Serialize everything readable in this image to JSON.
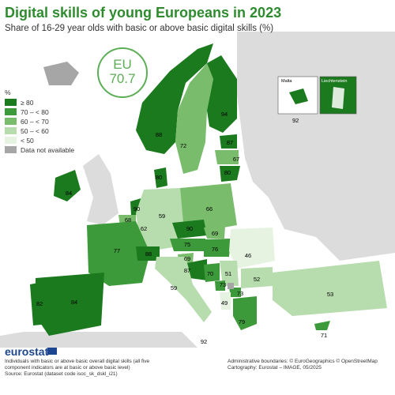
{
  "title": "Digital skills of young Europeans in 2023",
  "subtitle": "Share of 16-29 year olds with basic or above basic digital skills (%)",
  "eu_badge": {
    "label": "EU",
    "value": "70.7"
  },
  "legend": {
    "unit": "%",
    "items": [
      {
        "label": "≥ 80",
        "color": "#1b7a1e"
      },
      {
        "label": "70 – < 80",
        "color": "#3d9a3a"
      },
      {
        "label": "60 – < 70",
        "color": "#79bd6c"
      },
      {
        "label": "50 – < 60",
        "color": "#b7dcae"
      },
      {
        "label": "< 50",
        "color": "#e6f3e1"
      },
      {
        "label": "Data not available",
        "color": "#a6a6a6"
      }
    ]
  },
  "countries": [
    {
      "name": "Finland",
      "value": "94"
    },
    {
      "name": "Norway",
      "value": "88"
    },
    {
      "name": "Sweden",
      "value": "72"
    },
    {
      "name": "Estonia",
      "value": "87"
    },
    {
      "name": "Latvia",
      "value": "67"
    },
    {
      "name": "Lithuania",
      "value": "80"
    },
    {
      "name": "Denmark",
      "value": "80"
    },
    {
      "name": "Ireland",
      "value": "84"
    },
    {
      "name": "Netherlands",
      "value": "90"
    },
    {
      "name": "Belgium",
      "value": "68"
    },
    {
      "name": "Luxembourg",
      "value": "62"
    },
    {
      "name": "Germany",
      "value": "59"
    },
    {
      "name": "Poland",
      "value": "66"
    },
    {
      "name": "Czechia",
      "value": "90"
    },
    {
      "name": "Slovakia",
      "value": "69"
    },
    {
      "name": "Austria",
      "value": "75"
    },
    {
      "name": "Hungary",
      "value": "76"
    },
    {
      "name": "Romania",
      "value": "46"
    },
    {
      "name": "France",
      "value": "77"
    },
    {
      "name": "Switzerland",
      "value": "88"
    },
    {
      "name": "Slovenia",
      "value": "69"
    },
    {
      "name": "Croatia",
      "value": "87"
    },
    {
      "name": "Bosnia and Herzegovina",
      "value": "70"
    },
    {
      "name": "Serbia",
      "value": "51"
    },
    {
      "name": "Bulgaria",
      "value": "52"
    },
    {
      "name": "Montenegro",
      "value": "73"
    },
    {
      "name": "North Macedonia",
      "value": "73"
    },
    {
      "name": "Albania",
      "value": "49"
    },
    {
      "name": "Italy",
      "value": "59"
    },
    {
      "name": "Spain",
      "value": "84"
    },
    {
      "name": "Portugal",
      "value": "82"
    },
    {
      "name": "Greece",
      "value": "79"
    },
    {
      "name": "Türkiye",
      "value": "53"
    },
    {
      "name": "Cyprus",
      "value": "71"
    },
    {
      "name": "Malta",
      "value": "92"
    }
  ],
  "insets": {
    "malta": {
      "label": "Malta",
      "value": "92"
    },
    "liechtenstein": {
      "label": "Liechtenstein"
    }
  },
  "footer": {
    "logo": "eurostat",
    "note_line1": "Individuals with basic or above basic overall digital skills (all five",
    "note_line2": "component indicators are at basic or above basic level)",
    "source": "Source: Eurostat (dataset code isoc_sk_dskl_i21)",
    "boundaries": "Administrative boundaries: © EuroGeographics © OpenStreetMap",
    "cartography": "Cartography: Eurostat – IMAGE, 05/2025"
  }
}
